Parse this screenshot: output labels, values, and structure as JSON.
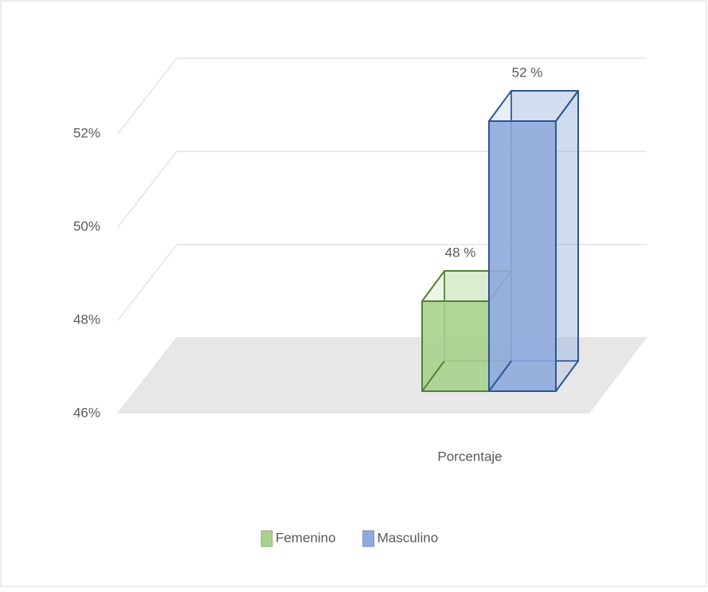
{
  "chart_data": {
    "type": "bar3d",
    "categories": [
      "Porcentaje"
    ],
    "series": [
      {
        "name": "Femenino",
        "color": "#a9d18e",
        "edge": "#548235",
        "values": [
          48
        ],
        "value_labels": [
          "48 %"
        ]
      },
      {
        "name": "Masculino",
        "color": "#8faadc",
        "edge": "#2f5597",
        "values": [
          52
        ],
        "value_labels": [
          "52 %"
        ]
      }
    ],
    "ylim": [
      46,
      52
    ],
    "yticks": [
      {
        "value": 46,
        "label": "46%"
      },
      {
        "value": 48,
        "label": "48%"
      },
      {
        "value": 50,
        "label": "50%"
      },
      {
        "value": 52,
        "label": "52%"
      }
    ],
    "grid": true,
    "legend": "bottom"
  }
}
